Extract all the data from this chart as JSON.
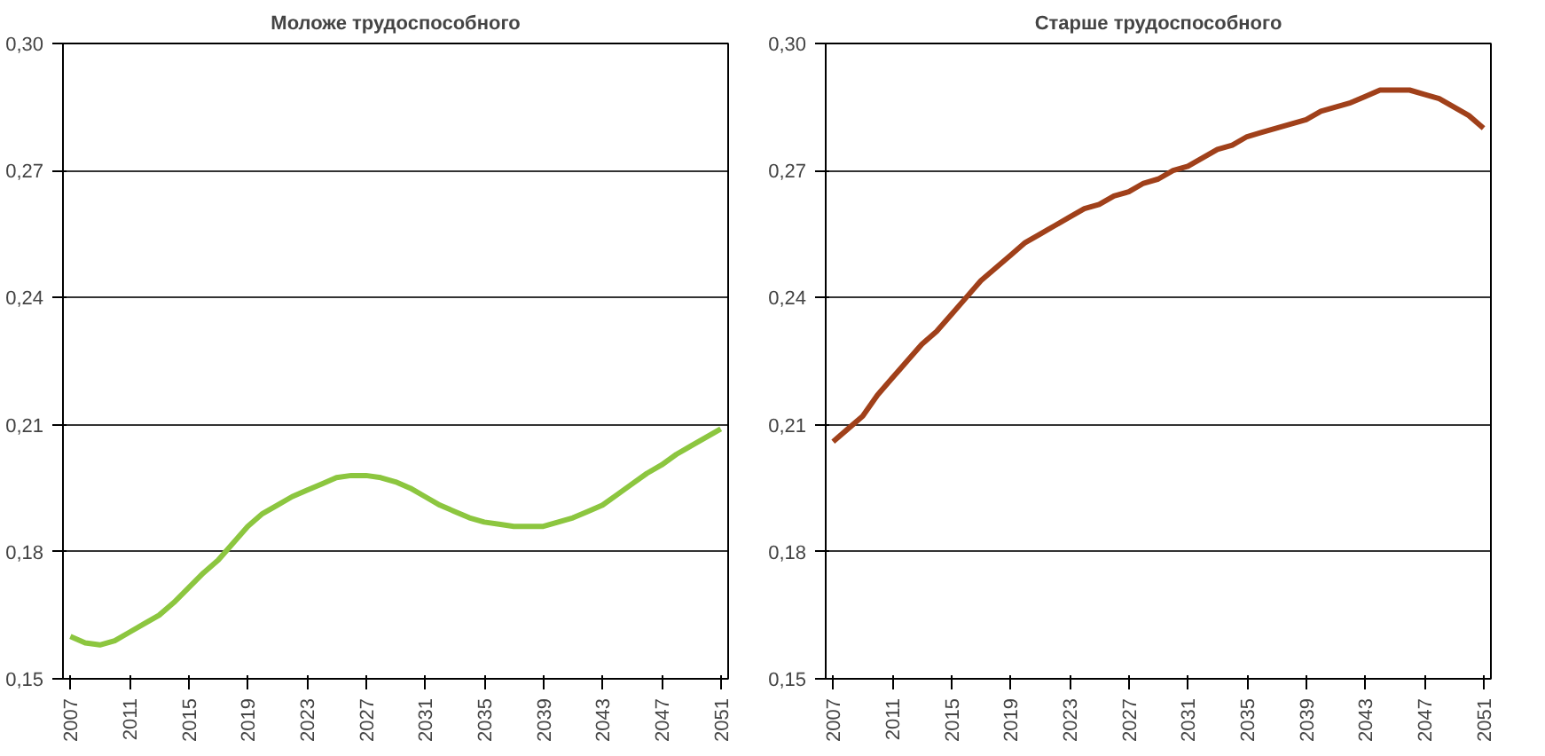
{
  "chart_data": [
    {
      "type": "line",
      "title": "Моложе трудоспособного",
      "x": [
        2007,
        2008,
        2009,
        2010,
        2011,
        2012,
        2013,
        2014,
        2015,
        2016,
        2017,
        2018,
        2019,
        2020,
        2021,
        2022,
        2023,
        2024,
        2025,
        2026,
        2027,
        2028,
        2029,
        2030,
        2031,
        2032,
        2033,
        2034,
        2035,
        2036,
        2037,
        2038,
        2039,
        2040,
        2041,
        2042,
        2043,
        2044,
        2045,
        2046,
        2047,
        2048,
        2049,
        2050,
        2051
      ],
      "series": [
        {
          "color": "#8cc63f",
          "values": [
            0.16,
            0.1585,
            0.158,
            0.159,
            0.161,
            0.163,
            0.165,
            0.168,
            0.1715,
            0.175,
            0.178,
            0.182,
            0.186,
            0.189,
            0.191,
            0.193,
            0.1945,
            0.196,
            0.1975,
            0.198,
            0.198,
            0.1975,
            0.1965,
            0.195,
            0.193,
            0.191,
            0.1895,
            0.188,
            0.187,
            0.1865,
            0.186,
            0.186,
            0.186,
            0.187,
            0.188,
            0.1895,
            0.191,
            0.1935,
            0.196,
            0.1985,
            0.2005,
            0.203,
            0.205,
            0.207,
            0.209
          ]
        }
      ],
      "xlim": [
        2006.5,
        2051.5
      ],
      "xticks": [
        2007,
        2011,
        2015,
        2019,
        2023,
        2027,
        2031,
        2035,
        2039,
        2043,
        2047,
        2051
      ],
      "ylim": [
        0.15,
        0.3
      ],
      "yticks": [
        {
          "value": 0.15,
          "label": "0,15"
        },
        {
          "value": 0.18,
          "label": "0,18"
        },
        {
          "value": 0.21,
          "label": "0,21"
        },
        {
          "value": 0.24,
          "label": "0,24"
        },
        {
          "value": 0.27,
          "label": "0,27"
        },
        {
          "value": 0.3,
          "label": "0,30"
        }
      ],
      "grid": "y"
    },
    {
      "type": "line",
      "title": "Старше трудоспособного",
      "x": [
        2007,
        2008,
        2009,
        2010,
        2011,
        2012,
        2013,
        2014,
        2015,
        2016,
        2017,
        2018,
        2019,
        2020,
        2021,
        2022,
        2023,
        2024,
        2025,
        2026,
        2027,
        2028,
        2029,
        2030,
        2031,
        2032,
        2033,
        2034,
        2035,
        2036,
        2037,
        2038,
        2039,
        2040,
        2041,
        2042,
        2043,
        2044,
        2045,
        2046,
        2047,
        2048,
        2049,
        2050,
        2051
      ],
      "series": [
        {
          "color": "#a0401a",
          "values": [
            0.206,
            0.209,
            0.212,
            0.217,
            0.221,
            0.225,
            0.229,
            0.232,
            0.236,
            0.24,
            0.244,
            0.247,
            0.25,
            0.253,
            0.255,
            0.257,
            0.259,
            0.261,
            0.262,
            0.264,
            0.265,
            0.267,
            0.268,
            0.27,
            0.271,
            0.273,
            0.275,
            0.276,
            0.278,
            0.279,
            0.28,
            0.281,
            0.282,
            0.284,
            0.285,
            0.286,
            0.2875,
            0.289,
            0.289,
            0.289,
            0.288,
            0.287,
            0.285,
            0.283,
            0.28
          ]
        }
      ],
      "xlim": [
        2006.5,
        2051.5
      ],
      "xticks": [
        2007,
        2011,
        2015,
        2019,
        2023,
        2027,
        2031,
        2035,
        2039,
        2043,
        2047,
        2051
      ],
      "ylim": [
        0.15,
        0.3
      ],
      "yticks": [
        {
          "value": 0.15,
          "label": "0,15"
        },
        {
          "value": 0.18,
          "label": "0,18"
        },
        {
          "value": 0.21,
          "label": "0,21"
        },
        {
          "value": 0.24,
          "label": "0,24"
        },
        {
          "value": 0.27,
          "label": "0,27"
        },
        {
          "value": 0.3,
          "label": "0,30"
        }
      ],
      "grid": "y"
    }
  ]
}
